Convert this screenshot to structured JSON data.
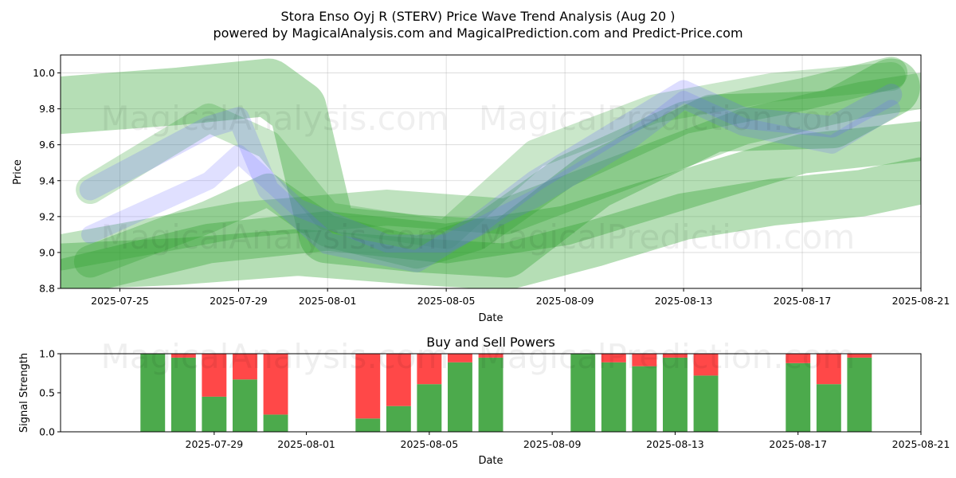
{
  "chart_data": [
    {
      "type": "area",
      "title": "Stora Enso Oyj R (STERV) Price Wave Trend Analysis (Aug 20 )",
      "subtitle": "powered by MagicalAnalysis.com and MagicalPrediction.com and Predict-Price.com",
      "xlabel": "Date",
      "ylabel": "Price",
      "xlim": [
        "2025-07-23",
        "2025-08-21"
      ],
      "ylim": [
        8.8,
        10.1
      ],
      "x_ticks": [
        "2025-07-25",
        "2025-07-29",
        "2025-08-01",
        "2025-08-05",
        "2025-08-09",
        "2025-08-13",
        "2025-08-17",
        "2025-08-21"
      ],
      "y_ticks": [
        "8.8",
        "9.0",
        "9.2",
        "9.4",
        "9.6",
        "9.8",
        "10.0"
      ],
      "grid": true,
      "watermarks": [
        "MagicalAnalysis.com",
        "MagicalPrediction.com"
      ],
      "colors": {
        "green": "#2ca02c",
        "blue": "#6666ff"
      },
      "bands": [
        {
          "color": "green",
          "opacity": 0.35,
          "width": 0.32,
          "x": [
            "2025-07-23",
            "2025-07-27",
            "2025-07-30",
            "2025-07-31",
            "2025-08-01",
            "2025-08-04",
            "2025-08-07",
            "2025-08-10",
            "2025-08-14",
            "2025-08-18",
            "2025-08-20"
          ],
          "y": [
            9.82,
            9.87,
            9.92,
            9.8,
            9.1,
            9.05,
            9.02,
            9.4,
            9.72,
            9.74,
            9.92
          ]
        },
        {
          "color": "green",
          "opacity": 0.35,
          "width": 0.26,
          "x": [
            "2025-07-23",
            "2025-07-27",
            "2025-07-31",
            "2025-08-04",
            "2025-08-07",
            "2025-08-10",
            "2025-08-13",
            "2025-08-16",
            "2025-08-19",
            "2025-08-21"
          ],
          "y": [
            8.92,
            8.95,
            9.0,
            8.95,
            8.92,
            9.05,
            9.2,
            9.28,
            9.33,
            9.4
          ]
        },
        {
          "color": "green",
          "opacity": 0.35,
          "width": 0.22,
          "x": [
            "2025-07-23",
            "2025-07-28",
            "2025-08-01",
            "2025-08-05",
            "2025-08-09",
            "2025-08-13",
            "2025-08-17",
            "2025-08-21"
          ],
          "y": [
            8.85,
            9.05,
            9.12,
            9.05,
            9.15,
            9.35,
            9.55,
            9.62
          ]
        },
        {
          "color": "green",
          "opacity": 0.3,
          "width": 0.2,
          "x": [
            "2025-07-23",
            "2025-07-29",
            "2025-08-03",
            "2025-08-07",
            "2025-08-11",
            "2025-08-15",
            "2025-08-19",
            "2025-08-21"
          ],
          "y": [
            9.0,
            9.18,
            9.25,
            9.2,
            9.45,
            9.7,
            9.85,
            9.9
          ]
        },
        {
          "color": "green",
          "opacity": 0.3,
          "width": 0.18,
          "x": [
            "2025-07-24",
            "2025-07-28",
            "2025-07-30",
            "2025-08-01",
            "2025-08-04",
            "2025-08-06",
            "2025-08-09",
            "2025-08-13",
            "2025-08-17",
            "2025-08-20"
          ],
          "y": [
            8.95,
            9.2,
            9.35,
            9.12,
            9.0,
            9.1,
            9.45,
            9.75,
            9.88,
            10.0
          ]
        },
        {
          "color": "green",
          "opacity": 0.25,
          "width": 0.16,
          "x": [
            "2025-07-24",
            "2025-07-28",
            "2025-07-30",
            "2025-08-01",
            "2025-08-05",
            "2025-08-08",
            "2025-08-12",
            "2025-08-16",
            "2025-08-20"
          ],
          "y": [
            9.35,
            9.75,
            9.6,
            9.2,
            9.1,
            9.55,
            9.8,
            9.92,
            9.98
          ]
        },
        {
          "color": "blue",
          "opacity": 0.22,
          "width": 0.12,
          "x": [
            "2025-07-24",
            "2025-07-28",
            "2025-07-29",
            "2025-07-30",
            "2025-08-01",
            "2025-08-04",
            "2025-08-06",
            "2025-08-08",
            "2025-08-11",
            "2025-08-13",
            "2025-08-15",
            "2025-08-18",
            "2025-08-20"
          ],
          "y": [
            9.35,
            9.7,
            9.75,
            9.35,
            9.05,
            8.95,
            9.15,
            9.4,
            9.7,
            9.9,
            9.75,
            9.7,
            9.88
          ]
        },
        {
          "color": "blue",
          "opacity": 0.2,
          "width": 0.1,
          "x": [
            "2025-07-24",
            "2025-07-28",
            "2025-07-29",
            "2025-07-31",
            "2025-08-03",
            "2025-08-05",
            "2025-08-08",
            "2025-08-11",
            "2025-08-13",
            "2025-08-15",
            "2025-08-18",
            "2025-08-20"
          ],
          "y": [
            9.1,
            9.4,
            9.55,
            9.25,
            9.05,
            9.05,
            9.3,
            9.6,
            9.85,
            9.7,
            9.6,
            9.8
          ]
        }
      ]
    },
    {
      "type": "bar",
      "title": "Buy and Sell Powers",
      "xlabel": "Date",
      "ylabel": "Signal Strength",
      "xlim": [
        "2025-07-24",
        "2025-08-21"
      ],
      "ylim": [
        0,
        1.0
      ],
      "x_ticks": [
        "2025-07-29",
        "2025-08-01",
        "2025-08-05",
        "2025-08-09",
        "2025-08-13",
        "2025-08-17",
        "2025-08-21"
      ],
      "y_ticks": [
        "0.0",
        "0.5",
        "1.0"
      ],
      "colors": {
        "buy": "#4caa4c",
        "sell": "#ff4848"
      },
      "x": [
        "2025-07-27",
        "2025-07-28",
        "2025-07-29",
        "2025-07-30",
        "2025-07-31",
        "2025-08-03",
        "2025-08-04",
        "2025-08-05",
        "2025-08-06",
        "2025-08-07",
        "2025-08-10",
        "2025-08-11",
        "2025-08-12",
        "2025-08-13",
        "2025-08-14",
        "2025-08-17",
        "2025-08-18",
        "2025-08-19"
      ],
      "series": [
        {
          "name": "",
          "values": [
            1.0,
            0.95,
            0.45,
            0.67,
            0.22,
            0.17,
            0.33,
            0.61,
            0.89,
            0.95,
            1.0,
            0.89,
            0.84,
            0.95,
            0.72,
            0.88,
            0.61,
            0.95
          ]
        }
      ]
    }
  ]
}
